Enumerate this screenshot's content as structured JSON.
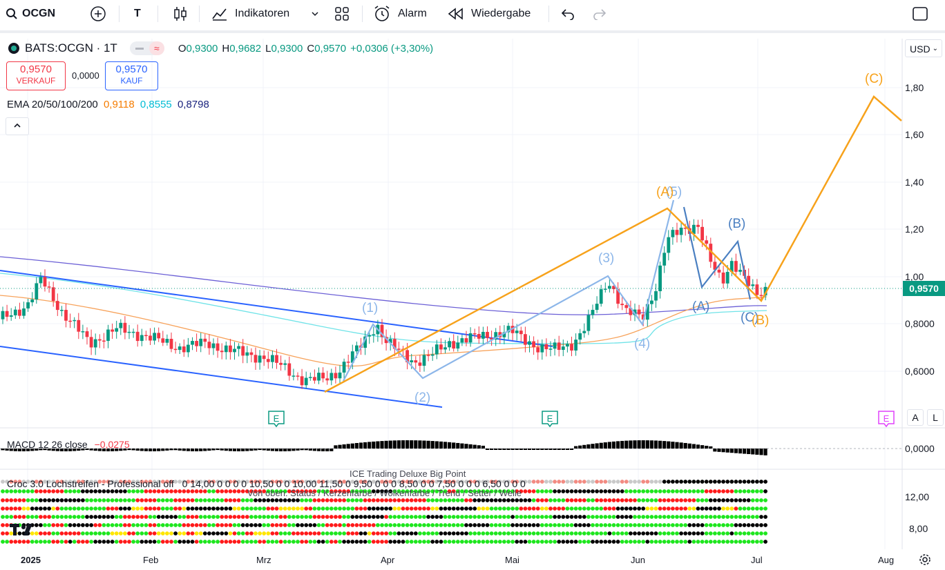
{
  "toolbar": {
    "symbol": "OCGN",
    "text_tool": "T",
    "indicators": "Indikatoren",
    "alarm": "Alarm",
    "replay": "Wiedergabe"
  },
  "legend": {
    "title": "BATS:OCGN · 1T",
    "o_label": "O",
    "o_val": "0,9300",
    "h_label": "H",
    "h_val": "0,9682",
    "l_label": "L",
    "l_val": "0,9300",
    "c_label": "C",
    "c_val": "0,9570",
    "change": "+0,0306 (+3,30%)",
    "sell_price": "0,9570",
    "sell_label": "VERKAUF",
    "spread": "0,0000",
    "buy_price": "0,9570",
    "buy_label": "KAUF",
    "ema_label": "EMA 20/50/100/200",
    "ema1": "0,9118",
    "ema2": "0,8555",
    "ema3": "0,8798"
  },
  "currency": "USD",
  "price_axis": [
    "1,80",
    "1,60",
    "1,40",
    "1,20",
    "1,00",
    "0,8000",
    "0,6000"
  ],
  "last_price": "0,9570",
  "macd": {
    "label": "MACD 12 26 close",
    "value": "−0,0275",
    "axis": "0,0000"
  },
  "croc": {
    "label": "Croc 3.0 Lochstreifen - Professional off",
    "values": "0  14,00  0  0  0  0  10,50  0  0  10,00  11,50  0  9,50  0  0  0  8,50  0  0  7,50  0  0  0  6,50  0  0  0",
    "overlay_title": "ICE Trading Deluxe Big Point",
    "overlay_sub": "Von oben: Status / Kerzenfarbe / Wolkenfarbe / Trend / Setter / Welle",
    "axis1": "12,00",
    "axis2": "8,00"
  },
  "time_axis": [
    "2025",
    "Feb",
    "Mrz",
    "Apr",
    "Mai",
    "Jun",
    "Jul",
    "Aug"
  ],
  "wave_labels": {
    "w1": "(1)",
    "w2": "(2)",
    "w3": "(3)",
    "w4": "(4)",
    "w5": "(5)",
    "A_orange": "(A)",
    "A_blue": "(A)",
    "B_blue": "(B)",
    "C_blue": "(C)",
    "B_orange": "(B)",
    "C_orange": "(C)"
  },
  "earnings_marker": "E",
  "scale_buttons": {
    "auto": "A",
    "log": "L"
  },
  "colors": {
    "up": "#089981",
    "down": "#f23645",
    "orange": "#f7a21b",
    "lightblue": "#8cb6e9",
    "blue": "#2962ff",
    "steel": "#4a7fc1"
  }
}
